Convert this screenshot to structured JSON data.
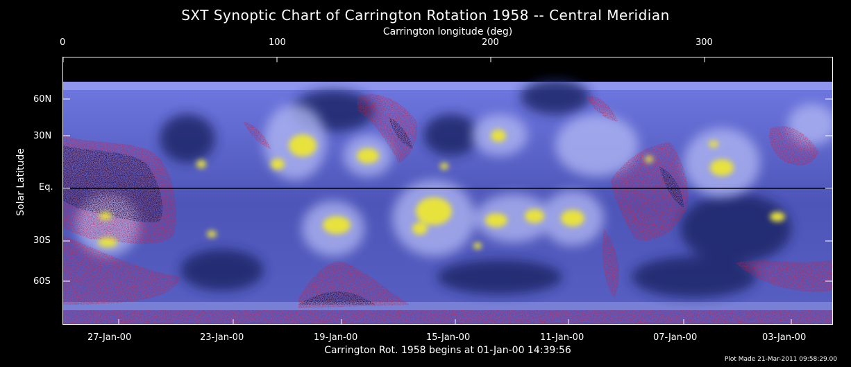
{
  "title": "SXT Synoptic Chart of Carrington Rotation 1958 -- Central Meridian",
  "top_axis": {
    "label": "Carrington longitude (deg)",
    "ticks": [
      "0",
      "100",
      "200",
      "300"
    ]
  },
  "left_axis": {
    "label": "Solar Latitude",
    "ticks": [
      "60N",
      "30N",
      "Eq.",
      "30S",
      "60S"
    ]
  },
  "bottom_axis": {
    "label": "Carrington Rot. 1958 begins at 01-Jan-00 14:39:56",
    "ticks": [
      "27-Jan-00",
      "23-Jan-00",
      "19-Jan-00",
      "15-Jan-00",
      "11-Jan-00",
      "07-Jan-00",
      "03-Jan-00"
    ]
  },
  "footer": "Plot Made 21-Mar-2011 09:58:29.00",
  "colors": {
    "background": "#000000",
    "corona_base": "#5a62c8",
    "corona_bright": "#a9b0f0",
    "active_region": "#e6e23a",
    "coronal_hole": "#d2193c",
    "dark": "#1a2060"
  }
}
